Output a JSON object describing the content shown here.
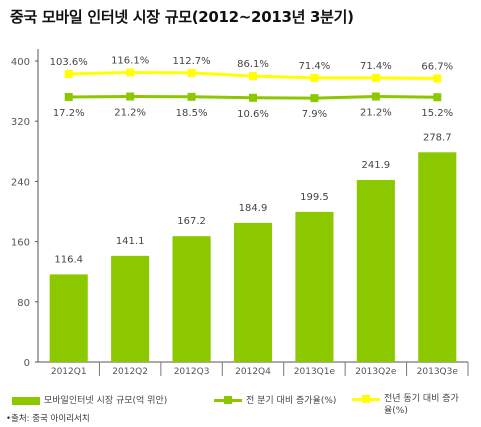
{
  "title": "중국 모바일 인터넷 시장 규모(2012~2013년 3분기)",
  "source": "•출처: 중국 아이리서치",
  "chart_data": {
    "type": "bar",
    "categories": [
      "2012Q1",
      "2012Q2",
      "2012Q3",
      "2012Q4",
      "2013Q1e",
      "2013Q2e",
      "2013Q3e"
    ],
    "ylim": [
      0,
      400
    ],
    "yticks": [
      0,
      80,
      160,
      240,
      320,
      400
    ],
    "grid": false,
    "series": [
      {
        "name": "모바일인터넷 시장 규모(억 위안)",
        "type": "bar",
        "color": "#8cc800",
        "values": [
          116.4,
          141.1,
          167.2,
          184.9,
          199.5,
          241.9,
          278.7
        ],
        "labels": [
          "116.4",
          "141.1",
          "167.2",
          "184.9",
          "199.5",
          "241.9",
          "278.7"
        ]
      },
      {
        "name": "전 분기 대비 증가율(%)",
        "type": "line",
        "color": "#8cc800",
        "values": [
          17.2,
          21.2,
          18.5,
          10.6,
          7.9,
          21.2,
          15.2
        ],
        "labels": [
          "17.2%",
          "21.2%",
          "18.5%",
          "10.6%",
          "7.9%",
          "21.2%",
          "15.2%"
        ]
      },
      {
        "name": "전년 동기 대비 증가율(%)",
        "type": "line",
        "color": "#ffff00",
        "values": [
          103.6,
          116.1,
          112.7,
          86.1,
          71.4,
          71.4,
          66.7
        ],
        "labels": [
          "103.6%",
          "116.1%",
          "112.7%",
          "86.1%",
          "71.4%",
          "71.4%",
          "66.7%"
        ]
      }
    ]
  }
}
